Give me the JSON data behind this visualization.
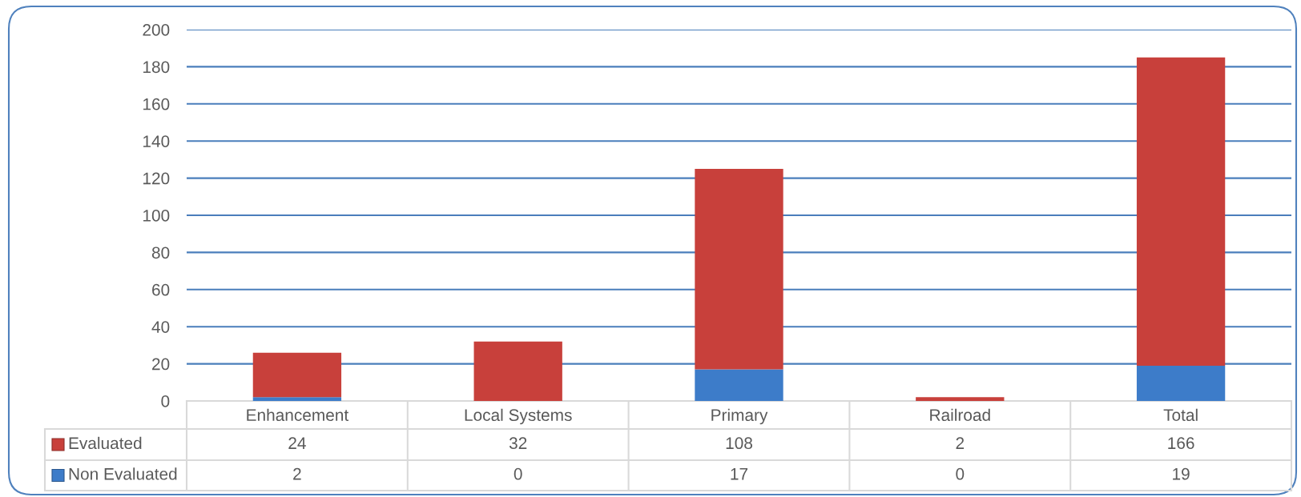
{
  "chart_data": {
    "type": "bar",
    "stacked": true,
    "categories": [
      "Enhancement",
      "Local Systems",
      "Primary",
      "Railroad",
      "Total"
    ],
    "series": [
      {
        "name": "Non Evaluated",
        "color": "#3d7cc9",
        "values": [
          2,
          0,
          17,
          0,
          19
        ]
      },
      {
        "name": "Evaluated",
        "color": "#c8403b",
        "values": [
          24,
          32,
          108,
          2,
          166
        ]
      }
    ],
    "ylim": [
      0,
      200
    ],
    "yticks": [
      0,
      20,
      40,
      60,
      80,
      100,
      120,
      140,
      160,
      180,
      200
    ],
    "grid": "y",
    "legend": "bottom",
    "data_labels": true
  }
}
